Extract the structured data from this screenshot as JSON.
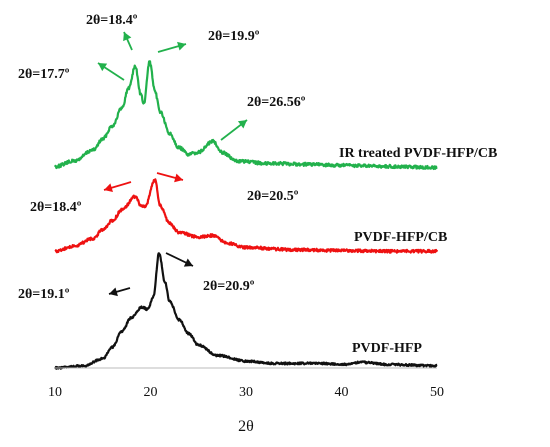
{
  "chart_data": {
    "type": "line",
    "xlabel": "2θ",
    "xlim": [
      10,
      50
    ],
    "xticks": [
      "10",
      "20",
      "30",
      "40",
      "50"
    ],
    "grid": false,
    "series": [
      {
        "name": "IR treated PVDF-HFP/CB",
        "color": "#22b14c",
        "x": [
          10,
          12,
          14,
          15,
          16,
          17,
          17.7,
          18.4,
          19,
          19.3,
          19.9,
          20.5,
          21,
          22,
          23,
          24,
          25,
          26.56,
          27.5,
          29,
          32,
          36,
          40,
          45,
          50
        ],
        "y": [
          0.05,
          0.1,
          0.2,
          0.3,
          0.42,
          0.58,
          0.76,
          0.96,
          0.7,
          0.62,
          1.0,
          0.72,
          0.55,
          0.35,
          0.22,
          0.16,
          0.18,
          0.28,
          0.18,
          0.1,
          0.08,
          0.07,
          0.06,
          0.05,
          0.04
        ]
      },
      {
        "name": "PVDF-HFP/CB",
        "color": "#ee1111",
        "x": [
          10,
          12,
          14,
          15,
          16,
          17,
          18.4,
          19,
          19.4,
          20.5,
          21,
          22,
          23,
          25,
          26.5,
          28,
          30,
          35,
          40,
          45,
          50
        ],
        "y": [
          0.05,
          0.12,
          0.22,
          0.34,
          0.46,
          0.6,
          0.78,
          0.66,
          0.64,
          1.0,
          0.66,
          0.42,
          0.3,
          0.24,
          0.26,
          0.16,
          0.1,
          0.07,
          0.06,
          0.05,
          0.05
        ]
      },
      {
        "name": "PVDF-HFP",
        "color": "#111111",
        "x": [
          10,
          13,
          15,
          16,
          17,
          18,
          19.1,
          19.7,
          20.3,
          20.9,
          21.5,
          22,
          23,
          24,
          25,
          27,
          30,
          33,
          35,
          38,
          40,
          42,
          45,
          50
        ],
        "y": [
          0,
          0.02,
          0.08,
          0.18,
          0.32,
          0.44,
          0.53,
          0.51,
          0.62,
          1.0,
          0.75,
          0.58,
          0.42,
          0.3,
          0.2,
          0.11,
          0.06,
          0.04,
          0.04,
          0.04,
          0.03,
          0.05,
          0.03,
          0.02
        ]
      }
    ],
    "annotations": [
      {
        "text": "2θ=17.7º",
        "series": 0
      },
      {
        "text": "2θ=18.4º",
        "series": 0
      },
      {
        "text": "2θ=19.9º",
        "series": 0
      },
      {
        "text": "2θ=26.56º",
        "series": 0
      },
      {
        "text": "2θ=18.4º",
        "series": 1
      },
      {
        "text": "2θ=20.5º",
        "series": 1
      },
      {
        "text": "2θ=19.1º",
        "series": 2
      },
      {
        "text": "2θ=20.9º",
        "series": 2
      }
    ]
  }
}
